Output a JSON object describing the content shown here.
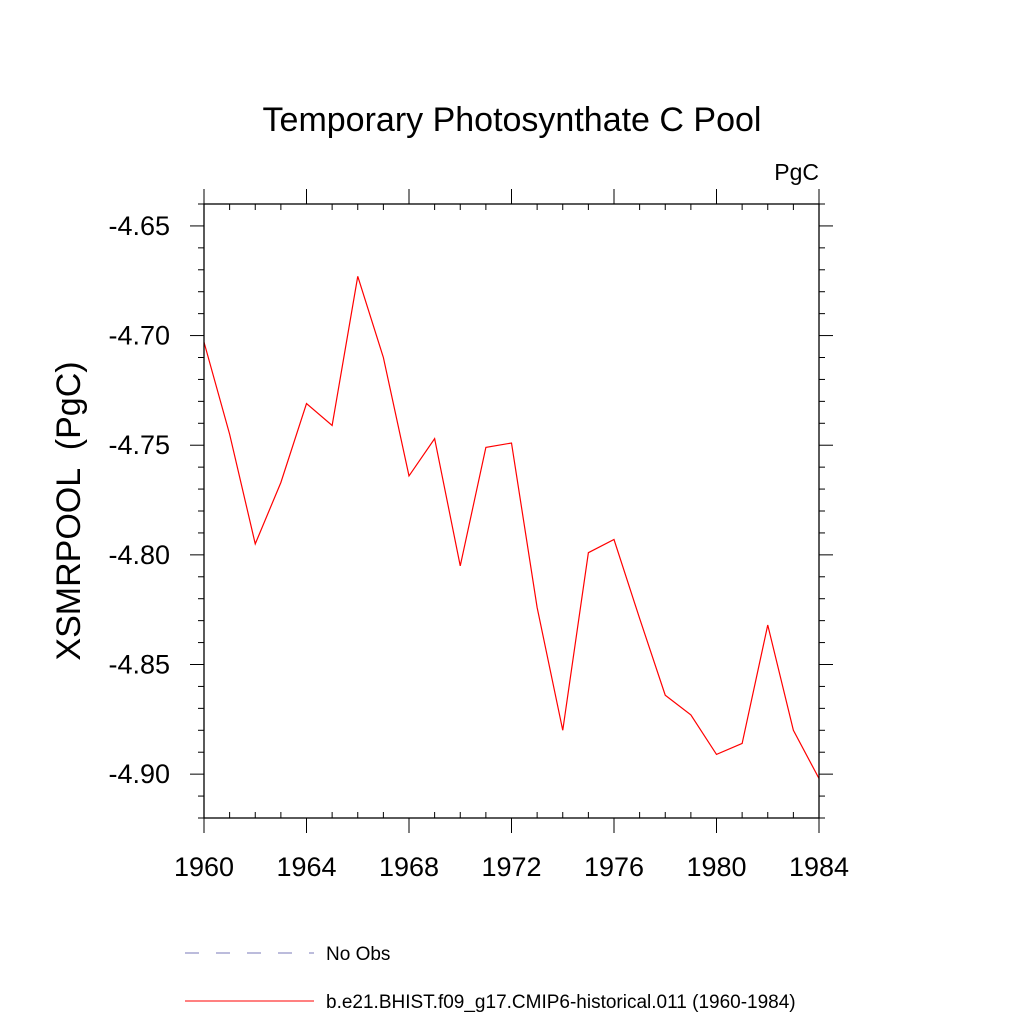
{
  "chart_data": {
    "type": "line",
    "title": "Temporary Photosynthate C Pool",
    "units_label": "PgC",
    "ylabel": "XSMRPOOL  (PgC)",
    "xlabel": "",
    "xlim": [
      1960,
      1984
    ],
    "ylim": [
      -4.92,
      -4.64
    ],
    "x_ticks": [
      1960,
      1964,
      1968,
      1972,
      1976,
      1980,
      1984
    ],
    "x_tick_labels": [
      "1960",
      "1964",
      "1968",
      "1972",
      "1976",
      "1980",
      "1984"
    ],
    "y_ticks": [
      -4.65,
      -4.7,
      -4.75,
      -4.8,
      -4.85,
      -4.9
    ],
    "y_tick_labels": [
      "-4.65",
      "-4.70",
      "-4.75",
      "-4.80",
      "-4.85",
      "-4.90"
    ],
    "grid": false,
    "legend_position": "bottom",
    "series": [
      {
        "name": "No Obs",
        "color": "#7a7ab8",
        "style": "dashed",
        "x": [],
        "values": []
      },
      {
        "name": "b.e21.BHIST.f09_g17.CMIP6-historical.011 (1960-1984)",
        "color": "#ff0000",
        "style": "solid",
        "x": [
          1960,
          1961,
          1962,
          1963,
          1964,
          1965,
          1966,
          1967,
          1968,
          1969,
          1970,
          1971,
          1972,
          1973,
          1974,
          1975,
          1976,
          1977,
          1978,
          1979,
          1980,
          1981,
          1982,
          1983,
          1984
        ],
        "values": [
          -4.703,
          -4.745,
          -4.795,
          -4.767,
          -4.731,
          -4.741,
          -4.673,
          -4.71,
          -4.764,
          -4.747,
          -4.805,
          -4.751,
          -4.749,
          -4.824,
          -4.88,
          -4.799,
          -4.793,
          -4.829,
          -4.864,
          -4.873,
          -4.891,
          -4.886,
          -4.832,
          -4.88,
          -4.902
        ]
      }
    ]
  }
}
